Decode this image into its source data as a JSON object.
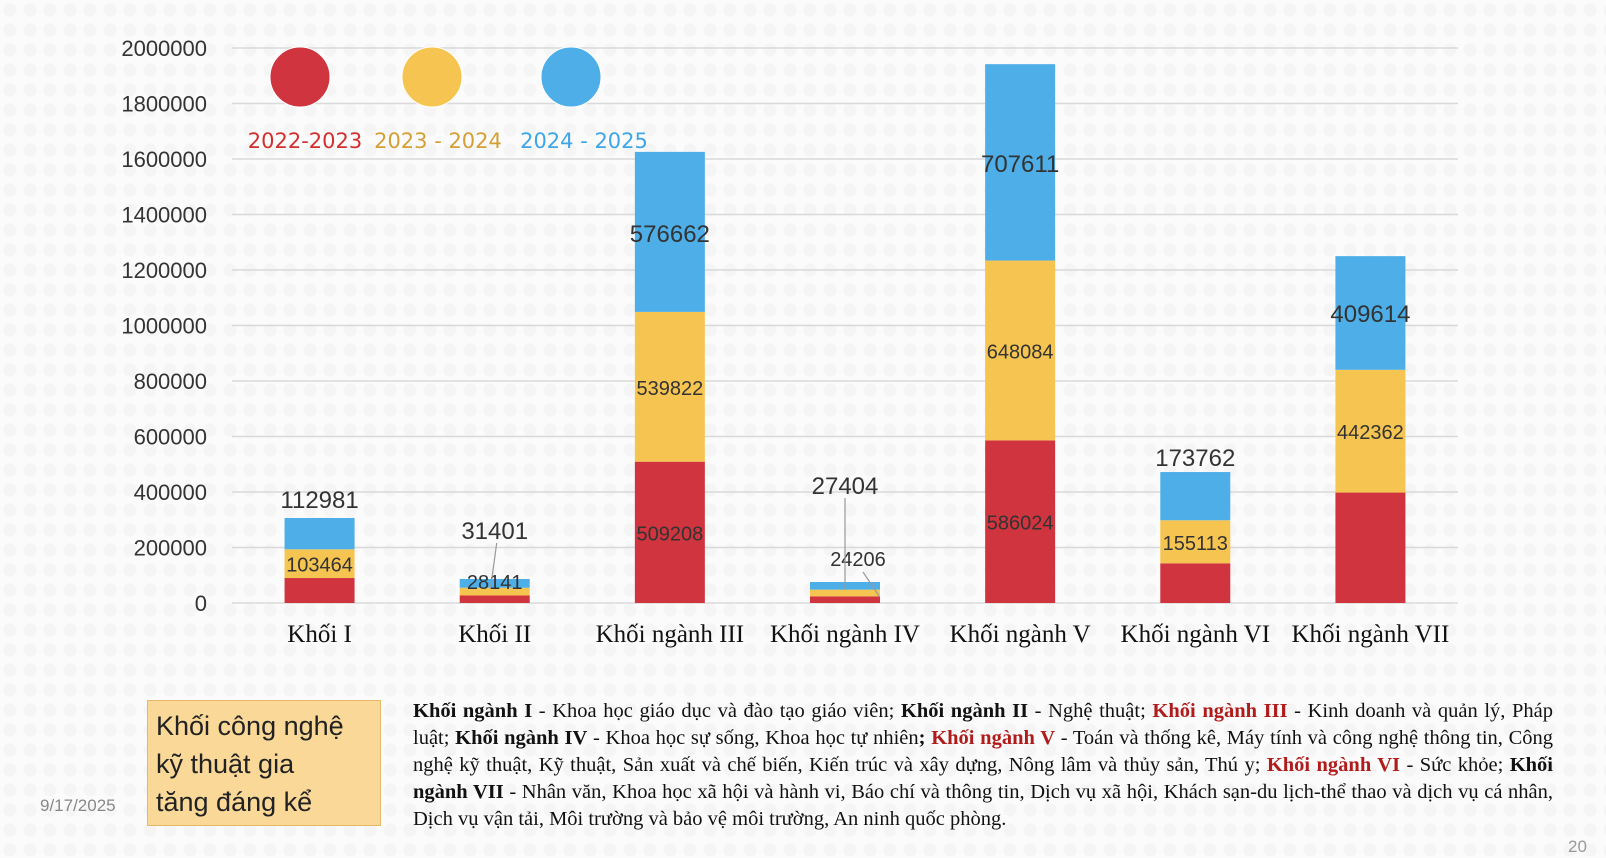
{
  "chart_data": {
    "type": "bar",
    "stacked": true,
    "categories": [
      "Khối I",
      "Khối II",
      "Khối ngành III",
      "Khối ngành IV",
      "Khối ngành V",
      "Khối ngành VI",
      "Khối ngành VII"
    ],
    "series": [
      {
        "name": "2022-2023",
        "color": "#d0343f",
        "values": [
          90000,
          27000,
          509208,
          24000,
          586024,
          143000,
          398000
        ],
        "labels": [
          null,
          null,
          "509208",
          null,
          "586024",
          null,
          null
        ]
      },
      {
        "name": "2023 - 2024",
        "color": "#f6c551",
        "values": [
          103464,
          28141,
          539822,
          24206,
          648084,
          155113,
          442362
        ],
        "labels": [
          "103464",
          "28141",
          "539822",
          "24206",
          "648084",
          "155113",
          "442362"
        ]
      },
      {
        "name": "2024 - 2025",
        "color": "#4daee8",
        "values": [
          112981,
          31401,
          576662,
          27404,
          707611,
          173762,
          409614
        ],
        "labels": [
          "112981",
          "31401",
          "576662",
          "27404",
          "707611",
          "173762",
          "409614"
        ]
      }
    ],
    "legend_text_colors": [
      "#d32f2f",
      "#d4a035",
      "#3ea6e6"
    ],
    "ylim": [
      0,
      2000000
    ],
    "yticks": [
      "0",
      "200000",
      "400000",
      "600000",
      "800000",
      "1000000",
      "1200000",
      "1400000",
      "1600000",
      "1800000",
      "2000000"
    ],
    "grid": true,
    "legend_placement": "top-left"
  },
  "note": {
    "line1": "Khối công nghệ",
    "line2": "kỹ thuật gia",
    "line3": "tăng đáng kể"
  },
  "footer": {
    "date": "9/17/2025",
    "page": "20"
  },
  "description": {
    "k1": "Khối ngành I",
    "t1": " - Khoa học giáo dục và đào tạo giáo viên; ",
    "k2": "Khối ngành II",
    "t2": " - Nghệ thuật; ",
    "k3": "Khối ngành III",
    "t3": " - Kinh doanh và quản lý, Pháp luật; ",
    "k4": "Khối ngành IV",
    "t4": " - Khoa học sự sống, Khoa học tự nhiên",
    "k5": "Khối ngành V",
    "t5": " - Toán và thống kê, Máy tính và công nghệ thông tin, Công nghệ kỹ thuật, Kỹ thuật, Sản xuất và chế biến, Kiến trúc và xây dựng, Nông lâm và thủy sản, Thú y; ",
    "k6": "Khối ngành VI",
    "t6": " - Sức khỏe; ",
    "k7": "Khối ngành VII",
    "t7": " - Nhân văn, Khoa học xã hội và hành vi, Báo chí và thông tin, Dịch vụ xã hội, Khách sạn-du lịch-thể thao và dịch vụ cá nhân, Dịch vụ vận tải, Môi trường và bảo vệ môi trường, An ninh quốc phòng."
  }
}
